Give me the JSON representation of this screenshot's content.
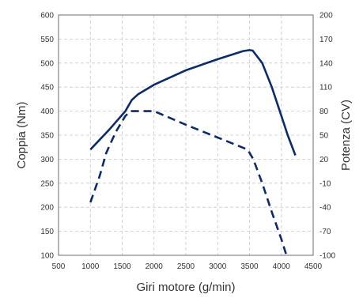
{
  "chart_data": {
    "type": "line",
    "title": "",
    "xlabel": "Giri motore (g/min)",
    "ylabel_left": "Coppia (Nm)",
    "ylabel_right": "Potenza (CV)",
    "xlim": [
      500,
      4500
    ],
    "ylim_left": [
      100,
      600
    ],
    "ylim_right": [
      -100,
      200
    ],
    "x_ticks": [
      500,
      1000,
      1500,
      2000,
      2500,
      3000,
      3500,
      4000,
      4500
    ],
    "y_left_ticks": [
      100,
      150,
      200,
      250,
      300,
      350,
      400,
      450,
      500,
      550,
      600
    ],
    "y_right_ticks": [
      -100,
      -70,
      -40,
      -10,
      20,
      50,
      80,
      110,
      140,
      170,
      200
    ],
    "grid": true,
    "legend": "none",
    "series": [
      {
        "axis": "left",
        "style": "solid",
        "color": "#0d2a6b",
        "points": [
          [
            1000,
            320
          ],
          [
            1300,
            362
          ],
          [
            1550,
            400
          ],
          [
            1650,
            423
          ],
          [
            1750,
            435
          ],
          [
            2000,
            455
          ],
          [
            2500,
            485
          ],
          [
            3000,
            508
          ],
          [
            3400,
            525
          ],
          [
            3500,
            527
          ],
          [
            3550,
            526
          ],
          [
            3700,
            500
          ],
          [
            3850,
            450
          ],
          [
            4000,
            390
          ],
          [
            4100,
            350
          ],
          [
            4220,
            308
          ]
        ]
      },
      {
        "axis": "right",
        "style": "dashed",
        "color": "#0d2a6b",
        "points": [
          [
            1000,
            -34
          ],
          [
            1150,
            0
          ],
          [
            1250,
            28
          ],
          [
            1400,
            54
          ],
          [
            1550,
            74
          ],
          [
            1630,
            80
          ],
          [
            1800,
            80
          ],
          [
            2000,
            80
          ],
          [
            2500,
            63
          ],
          [
            3000,
            47
          ],
          [
            3470,
            32
          ],
          [
            3560,
            20
          ],
          [
            3700,
            -10
          ],
          [
            3850,
            -46
          ],
          [
            4000,
            -80
          ],
          [
            4080,
            -100
          ]
        ]
      }
    ]
  }
}
